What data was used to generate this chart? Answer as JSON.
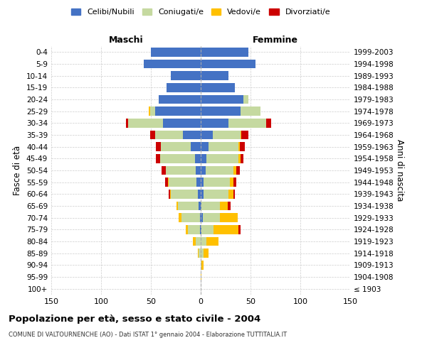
{
  "age_groups": [
    "100+",
    "95-99",
    "90-94",
    "85-89",
    "80-84",
    "75-79",
    "70-74",
    "65-69",
    "60-64",
    "55-59",
    "50-54",
    "45-49",
    "40-44",
    "35-39",
    "30-34",
    "25-29",
    "20-24",
    "15-19",
    "10-14",
    "5-9",
    "0-4"
  ],
  "birth_years": [
    "≤ 1903",
    "1904-1908",
    "1909-1913",
    "1914-1918",
    "1919-1923",
    "1924-1928",
    "1929-1933",
    "1934-1938",
    "1939-1943",
    "1944-1948",
    "1949-1953",
    "1954-1958",
    "1959-1963",
    "1964-1968",
    "1969-1973",
    "1974-1978",
    "1979-1983",
    "1984-1988",
    "1989-1993",
    "1994-1998",
    "1999-2003"
  ],
  "male": {
    "celibi": [
      0,
      0,
      0,
      0,
      0,
      1,
      1,
      2,
      3,
      4,
      5,
      6,
      10,
      18,
      38,
      46,
      42,
      34,
      30,
      57,
      50
    ],
    "coniugati": [
      0,
      0,
      0,
      2,
      5,
      12,
      18,
      21,
      27,
      28,
      30,
      35,
      30,
      28,
      35,
      5,
      0,
      0,
      0,
      0,
      0
    ],
    "vedovi": [
      0,
      0,
      0,
      1,
      3,
      2,
      3,
      1,
      1,
      1,
      0,
      0,
      0,
      0,
      0,
      1,
      0,
      0,
      0,
      0,
      0
    ],
    "divorziati": [
      0,
      0,
      0,
      0,
      0,
      0,
      0,
      0,
      1,
      3,
      4,
      4,
      5,
      5,
      2,
      0,
      0,
      0,
      0,
      0,
      0
    ]
  },
  "female": {
    "nubili": [
      0,
      0,
      0,
      0,
      0,
      1,
      2,
      1,
      3,
      3,
      5,
      6,
      8,
      12,
      28,
      40,
      43,
      34,
      28,
      55,
      48
    ],
    "coniugate": [
      0,
      0,
      1,
      3,
      6,
      12,
      17,
      18,
      25,
      26,
      28,
      32,
      30,
      28,
      38,
      20,
      5,
      0,
      0,
      0,
      0
    ],
    "vedove": [
      0,
      1,
      2,
      5,
      12,
      25,
      18,
      8,
      5,
      4,
      3,
      2,
      1,
      1,
      0,
      0,
      0,
      0,
      0,
      0,
      0
    ],
    "divorziate": [
      0,
      0,
      0,
      0,
      0,
      2,
      0,
      3,
      1,
      3,
      3,
      3,
      5,
      7,
      5,
      0,
      0,
      0,
      0,
      0,
      0
    ]
  },
  "colors": {
    "celibi": "#4472c4",
    "coniugati": "#c5d9a0",
    "vedovi": "#ffc000",
    "divorziati": "#cc0000"
  },
  "title": "Popolazione per età, sesso e stato civile - 2004",
  "subtitle": "COMUNE DI VALTOURNENCHE (AO) - Dati ISTAT 1° gennaio 2004 - Elaborazione TUTTITALIA.IT",
  "xlabel_left": "Maschi",
  "xlabel_right": "Femmine",
  "ylabel_left": "Fasce di età",
  "ylabel_right": "Anni di nascita",
  "xlim": 150,
  "legend_labels": [
    "Celibi/Nubili",
    "Coniugati/e",
    "Vedovi/e",
    "Divorziati/e"
  ],
  "background_color": "#ffffff",
  "grid_color": "#cccccc"
}
